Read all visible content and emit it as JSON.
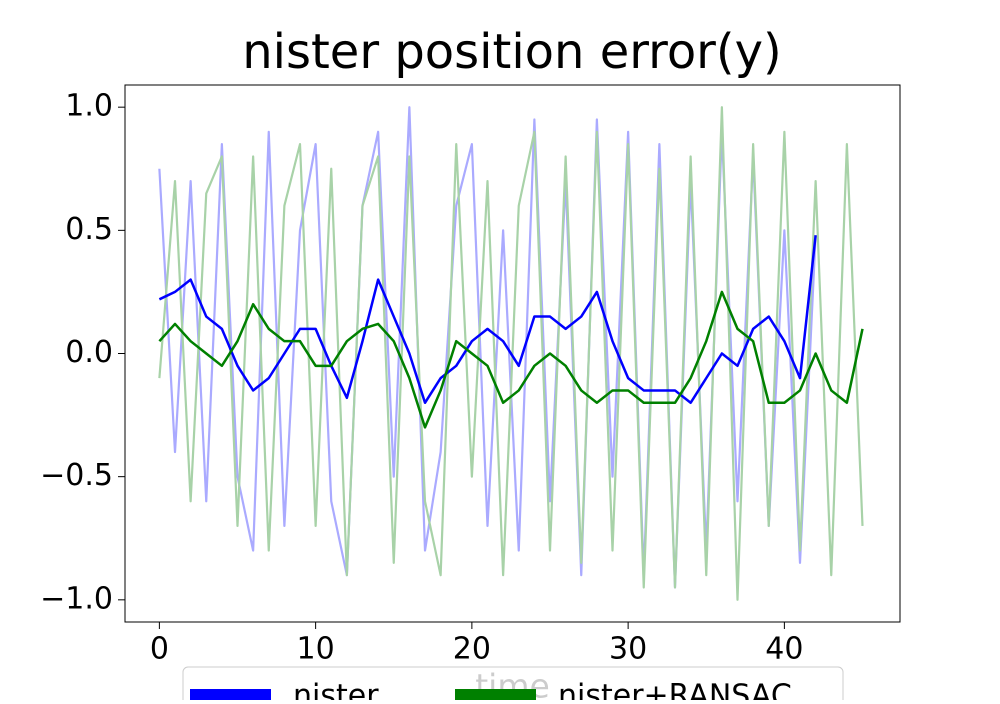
{
  "chart_data": {
    "type": "line",
    "title": "nister position error(y)",
    "xlabel": "time",
    "xlim": [
      -2.2,
      47.4
    ],
    "ylim": [
      -1.09,
      1.09
    ],
    "xticks": [
      0,
      10,
      20,
      30,
      40
    ],
    "yticks": [
      {
        "value": -1,
        "label": "−1.0"
      },
      {
        "value": -0.5,
        "label": "−0.5"
      },
      {
        "value": 0,
        "label": "0.0"
      },
      0.5,
      {
        "value": 1,
        "label": "1.0"
      }
    ],
    "legend": "lower center",
    "series": [
      {
        "color": "#aaaaff",
        "x": [
          0,
          1,
          2,
          3,
          4,
          5,
          6,
          7,
          8,
          9,
          10,
          11,
          12,
          13,
          14,
          15,
          16,
          17,
          18,
          19,
          20,
          21,
          22,
          23,
          24,
          25,
          26,
          27,
          28,
          29,
          30,
          31,
          32,
          33,
          34,
          35,
          36,
          37,
          38,
          39,
          40,
          41,
          42
        ],
        "values": [
          0.75,
          -0.4,
          0.7,
          -0.6,
          0.85,
          -0.5,
          -0.8,
          0.9,
          -0.7,
          0.5,
          0.85,
          -0.6,
          -0.9,
          0.6,
          0.9,
          -0.5,
          1.0,
          -0.8,
          -0.4,
          0.6,
          0.85,
          -0.7,
          0.5,
          -0.8,
          0.95,
          -0.6,
          0.7,
          -0.9,
          0.95,
          -0.5,
          0.9,
          -0.9,
          0.85,
          -0.95,
          0.7,
          -0.8,
          0.9,
          -0.6,
          0.8,
          -0.7,
          0.5,
          -0.85,
          0.48
        ]
      },
      {
        "color": "#a8d2a8",
        "x": [
          0,
          1,
          2,
          3,
          4,
          5,
          6,
          7,
          8,
          9,
          10,
          11,
          12,
          13,
          14,
          15,
          16,
          17,
          18,
          19,
          20,
          21,
          22,
          23,
          24,
          25,
          26,
          27,
          28,
          29,
          30,
          31,
          32,
          33,
          34,
          35,
          36,
          37,
          38,
          39,
          40,
          41,
          42,
          43,
          44,
          45
        ],
        "values": [
          -0.1,
          0.7,
          -0.6,
          0.65,
          0.8,
          -0.7,
          0.8,
          -0.8,
          0.6,
          0.85,
          -0.7,
          0.75,
          -0.9,
          0.6,
          0.8,
          -0.85,
          0.8,
          -0.6,
          -0.9,
          0.85,
          -0.5,
          0.7,
          -0.9,
          0.6,
          0.9,
          -0.8,
          0.8,
          -0.85,
          0.9,
          -0.8,
          0.85,
          -0.95,
          0.75,
          -0.95,
          0.8,
          -0.9,
          1.0,
          -1.0,
          0.85,
          -0.7,
          0.9,
          -0.8,
          0.7,
          -0.9,
          0.85,
          -0.7
        ]
      },
      {
        "name": "nister",
        "color": "#0000ff",
        "x": [
          0,
          1,
          2,
          3,
          4,
          5,
          6,
          7,
          8,
          9,
          10,
          11,
          12,
          13,
          14,
          15,
          16,
          17,
          18,
          19,
          20,
          21,
          22,
          23,
          24,
          25,
          26,
          27,
          28,
          29,
          30,
          31,
          32,
          33,
          34,
          35,
          36,
          37,
          38,
          39,
          40,
          41,
          42
        ],
        "values": [
          0.22,
          0.25,
          0.3,
          0.15,
          0.1,
          -0.05,
          -0.15,
          -0.1,
          0.0,
          0.1,
          0.1,
          -0.05,
          -0.18,
          0.05,
          0.3,
          0.15,
          0.0,
          -0.2,
          -0.1,
          -0.05,
          0.05,
          0.1,
          0.05,
          -0.05,
          0.15,
          0.15,
          0.1,
          0.15,
          0.25,
          0.05,
          -0.1,
          -0.15,
          -0.15,
          -0.15,
          -0.2,
          -0.1,
          0.0,
          -0.05,
          0.1,
          0.15,
          0.05,
          -0.1,
          0.48
        ]
      },
      {
        "name": "nister+RANSAC",
        "color": "#008000",
        "x": [
          0,
          1,
          2,
          3,
          4,
          5,
          6,
          7,
          8,
          9,
          10,
          11,
          12,
          13,
          14,
          15,
          16,
          17,
          18,
          19,
          20,
          21,
          22,
          23,
          24,
          25,
          26,
          27,
          28,
          29,
          30,
          31,
          32,
          33,
          34,
          35,
          36,
          37,
          38,
          39,
          40,
          41,
          42,
          43,
          44,
          45
        ],
        "values": [
          0.05,
          0.12,
          0.05,
          0.0,
          -0.05,
          0.05,
          0.2,
          0.1,
          0.05,
          0.05,
          -0.05,
          -0.05,
          0.05,
          0.1,
          0.12,
          0.05,
          -0.1,
          -0.3,
          -0.15,
          0.05,
          0.0,
          -0.05,
          -0.2,
          -0.15,
          -0.05,
          0.0,
          -0.05,
          -0.15,
          -0.2,
          -0.15,
          -0.15,
          -0.2,
          -0.2,
          -0.2,
          -0.1,
          0.05,
          0.25,
          0.1,
          0.05,
          -0.2,
          -0.2,
          -0.15,
          0.0,
          -0.15,
          -0.2,
          0.1
        ]
      }
    ]
  }
}
